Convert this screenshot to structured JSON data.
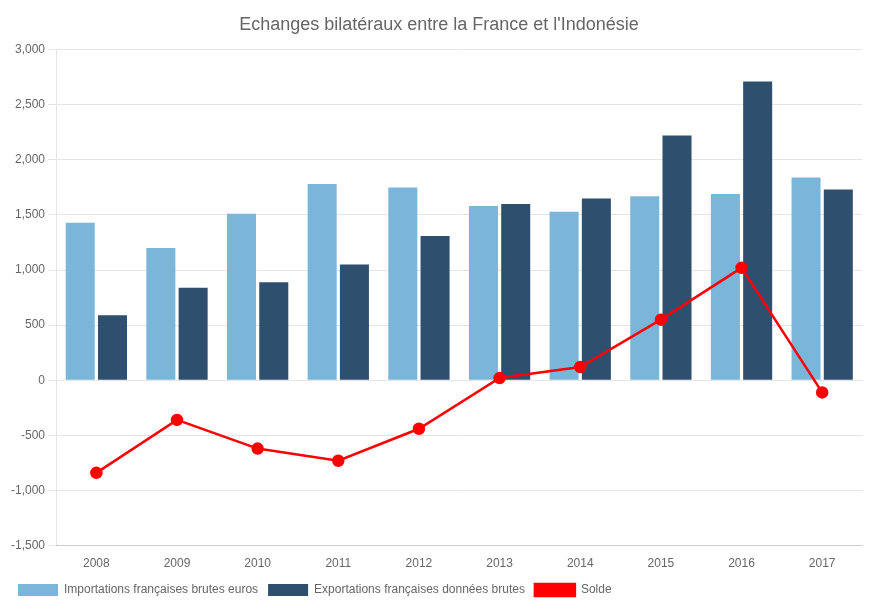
{
  "chart_data": {
    "type": "bar",
    "title": "Echanges bilatéraux entre la France et l'Indonésie",
    "categories": [
      "2008",
      "2009",
      "2010",
      "2011",
      "2012",
      "2013",
      "2014",
      "2015",
      "2016",
      "2017"
    ],
    "series": [
      {
        "name": "Importations françaises brutes euros",
        "type": "bar",
        "color": "#7ab6d9",
        "values": [
          1430,
          1200,
          1510,
          1780,
          1750,
          1580,
          1530,
          1670,
          1690,
          1840
        ]
      },
      {
        "name": "Exportations françaises données brutes",
        "type": "bar",
        "color": "#2f4f6e",
        "values": [
          590,
          840,
          890,
          1050,
          1310,
          1600,
          1650,
          2220,
          2710,
          1730
        ]
      },
      {
        "name": "Solde",
        "type": "line",
        "color": "#ff0000",
        "marker": "circle",
        "line_style": "solid",
        "values": [
          -840,
          -360,
          -620,
          -730,
          -440,
          20,
          120,
          550,
          1020,
          -110
        ]
      }
    ],
    "ylim": [
      -1500,
      3000
    ],
    "yticks": [
      {
        "value": -1500,
        "label": "-1,500"
      },
      {
        "value": -1000,
        "label": "-1,000"
      },
      -500,
      0,
      500,
      {
        "value": 1000,
        "label": "1,000"
      },
      {
        "value": 1500,
        "label": "1,500"
      },
      {
        "value": 2000,
        "label": "2,000"
      },
      {
        "value": 2500,
        "label": "2,500"
      },
      {
        "value": 3000,
        "label": "3,000"
      }
    ],
    "grid": true,
    "legend": "bottom"
  }
}
